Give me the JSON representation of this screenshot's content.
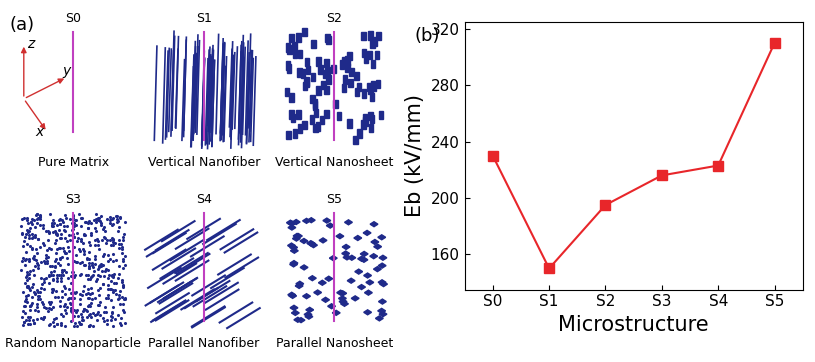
{
  "chart_data": {
    "type": "line",
    "annotations": [
      "(b)"
    ],
    "x_label": "Microstructure",
    "y_label": "Eb (kV/mm)",
    "categories": [
      "S0",
      "S1",
      "S2",
      "S3",
      "S4",
      "S5"
    ],
    "values": [
      230,
      150,
      195,
      216,
      223,
      310
    ],
    "color": "#e8262a",
    "marker": "square",
    "line_style": "solid",
    "ylim": [
      135,
      325
    ],
    "yticks": [
      160,
      200,
      240,
      280,
      320
    ],
    "grid": false
  },
  "diagram": {
    "label": "(a)",
    "axis_names": [
      "z",
      "y",
      "x"
    ],
    "panels": [
      {
        "name": "S0",
        "caption": "Pure Matrix"
      },
      {
        "name": "S1",
        "caption": "Vertical Nanofiber"
      },
      {
        "name": "S2",
        "caption": "Vertical Nanosheet"
      },
      {
        "name": "S3",
        "caption": "Random Nanoparticle"
      },
      {
        "name": "S4",
        "caption": "Parallel Nanofiber"
      },
      {
        "name": "S5",
        "caption": "Parallel Nanosheet"
      }
    ]
  }
}
